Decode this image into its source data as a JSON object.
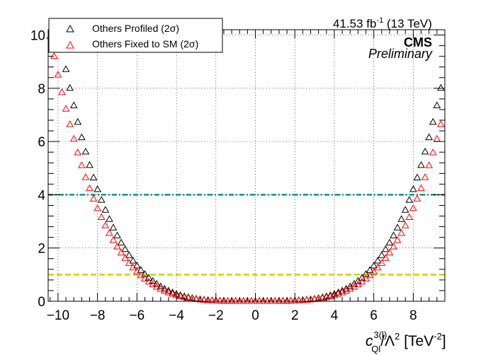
{
  "header": {
    "lumi": "41.53 fb",
    "lumi_exp": "-1",
    "energy": " (13 TeV)",
    "experiment": "CMS",
    "status": "Preliminary"
  },
  "legend": {
    "placement": "top-left",
    "entries": [
      "Others Profiled (2σ)",
      "Others Fixed to SM (2σ)"
    ]
  },
  "axis": {
    "x_var": "c",
    "x_sub": "Ql",
    "x_sup": "3(l)",
    "x_div": "/Λ",
    "x_div_sup": "2",
    "x_unit": " [TeV",
    "x_unit_sup": "-2",
    "x_unit_close": "]"
  },
  "chart_data": {
    "type": "scatter",
    "xlim": [
      -10.5,
      9.6
    ],
    "ylim": [
      0,
      10.2
    ],
    "x_ticks": [
      -10,
      -8,
      -6,
      -4,
      -2,
      0,
      2,
      4,
      6,
      8
    ],
    "y_ticks": [
      0,
      2,
      4,
      6,
      8,
      10
    ],
    "grid": true,
    "reference_lines": [
      {
        "y": 4,
        "color": "#0a9090",
        "style": "dash-dot"
      },
      {
        "y": 1,
        "color": "#d0d000",
        "style": "dashed"
      }
    ],
    "series": [
      {
        "name": "Others Profiled (2σ)",
        "color": "#000000",
        "marker": "open-triangle",
        "x_start": -10.4,
        "x_step": 0.2,
        "count": 100,
        "y_at_x10": 10.25,
        "shape_power": 4
      },
      {
        "name": "Others Fixed to SM (2σ)",
        "color": "#ff0000",
        "marker": "open-triangle",
        "x_start": -10.4,
        "x_step": 0.2,
        "count": 100,
        "y_at_x10": 8.5,
        "shape_power": 4
      }
    ]
  },
  "colors": {
    "profiled": "#000000",
    "fixed": "#ff0000",
    "line_2sigma": "#0a9090",
    "line_1sigma": "#d0d000"
  }
}
